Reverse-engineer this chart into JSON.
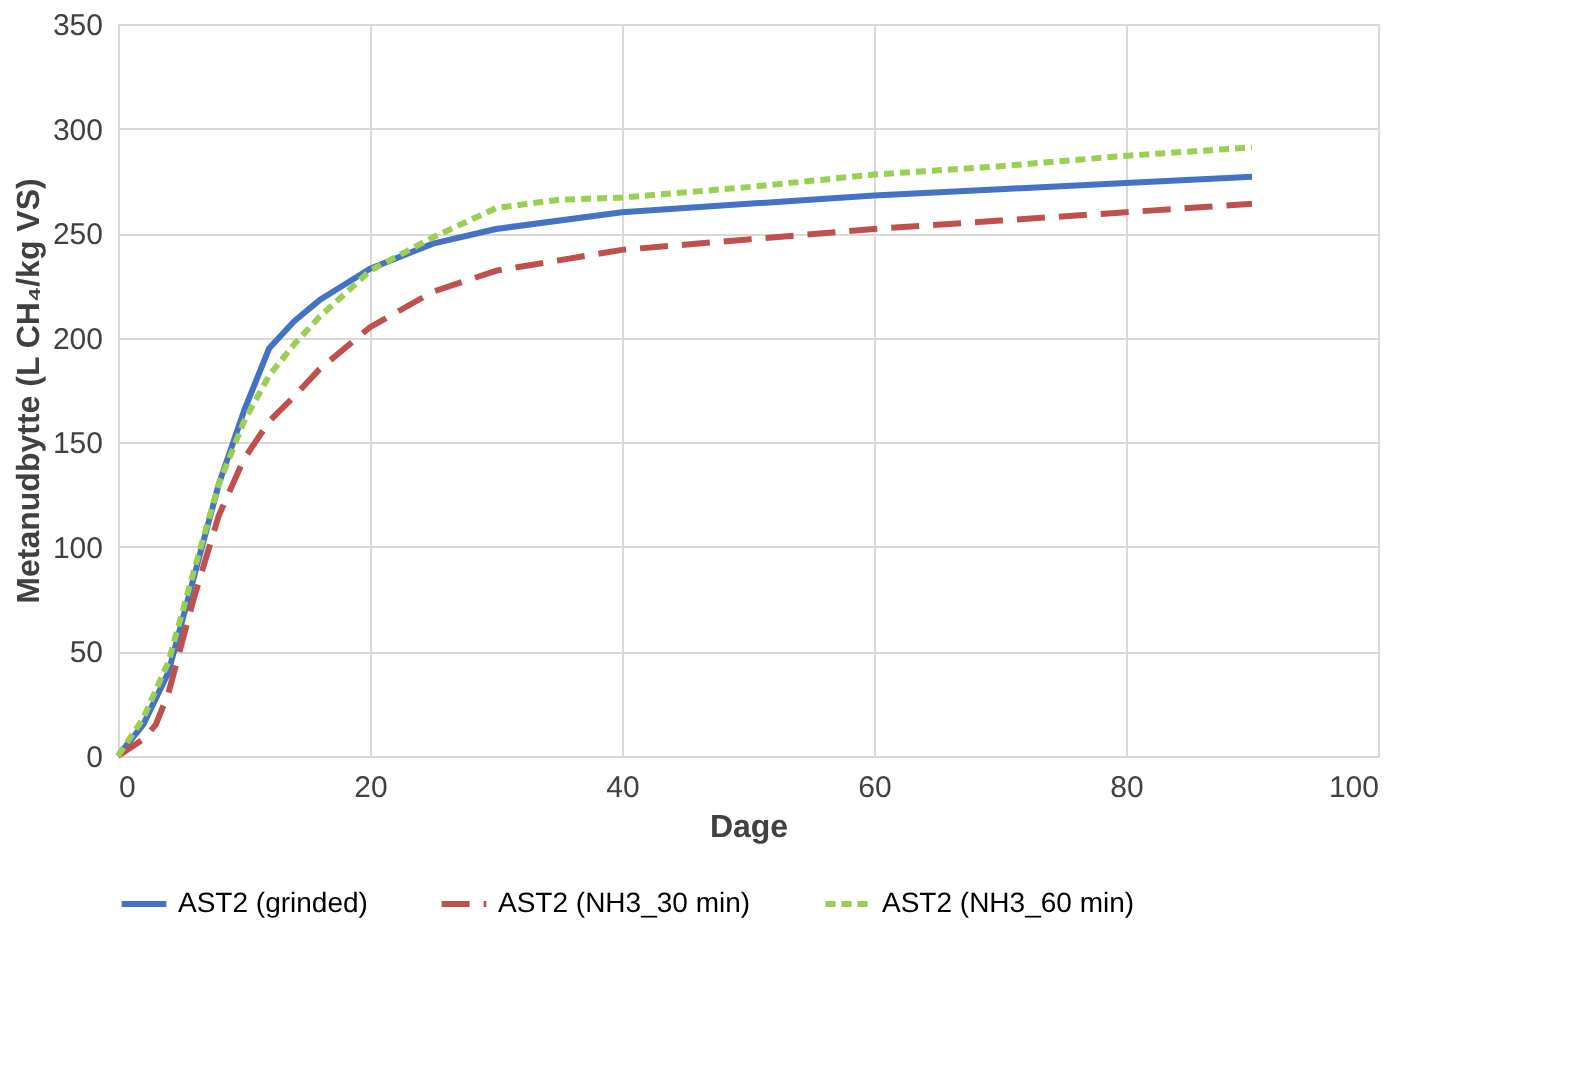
{
  "chart_data": {
    "type": "line",
    "xlabel": "Dage",
    "ylabel": "Metanudbytte (L CH₄/kg VS)",
    "xlim": [
      0,
      100
    ],
    "xticks": [
      0,
      20,
      40,
      60,
      80,
      100
    ],
    "ylim": [
      0,
      350
    ],
    "yticks": [
      0,
      50,
      100,
      150,
      200,
      250,
      300,
      350
    ],
    "grid": true,
    "legend": "bottom",
    "marker": "none",
    "series": [
      {
        "name": "AST2 (grinded)",
        "color": "#4472c4",
        "line_style": "solid",
        "x": [
          0,
          2,
          4,
          6,
          8,
          10,
          12,
          14,
          16,
          20,
          25,
          30,
          40,
          50,
          60,
          70,
          80,
          90
        ],
        "values": [
          0,
          15,
          40,
          85,
          130,
          165,
          195,
          208,
          218,
          233,
          245,
          252,
          260,
          264,
          268,
          271,
          274,
          277
        ]
      },
      {
        "name": "AST2 (NH3_30 min)",
        "color": "#c0504d",
        "line_style": "dashed",
        "x": [
          0,
          2,
          3,
          4,
          6,
          8,
          10,
          12,
          14,
          16,
          20,
          25,
          30,
          40,
          50,
          60,
          70,
          80,
          90
        ],
        "values": [
          0,
          8,
          15,
          30,
          75,
          115,
          142,
          160,
          172,
          185,
          205,
          222,
          232,
          242,
          247,
          252,
          256,
          260,
          264
        ]
      },
      {
        "name": "AST2 (NH3_60 min)",
        "color": "#9bcf53",
        "line_style": "dotted",
        "x": [
          0,
          2,
          4,
          6,
          8,
          10,
          12,
          14,
          16,
          20,
          25,
          30,
          35,
          40,
          50,
          60,
          70,
          80,
          90
        ],
        "values": [
          0,
          18,
          45,
          88,
          130,
          160,
          182,
          197,
          210,
          232,
          248,
          262,
          266,
          267,
          272,
          278,
          282,
          287,
          291
        ]
      }
    ]
  }
}
